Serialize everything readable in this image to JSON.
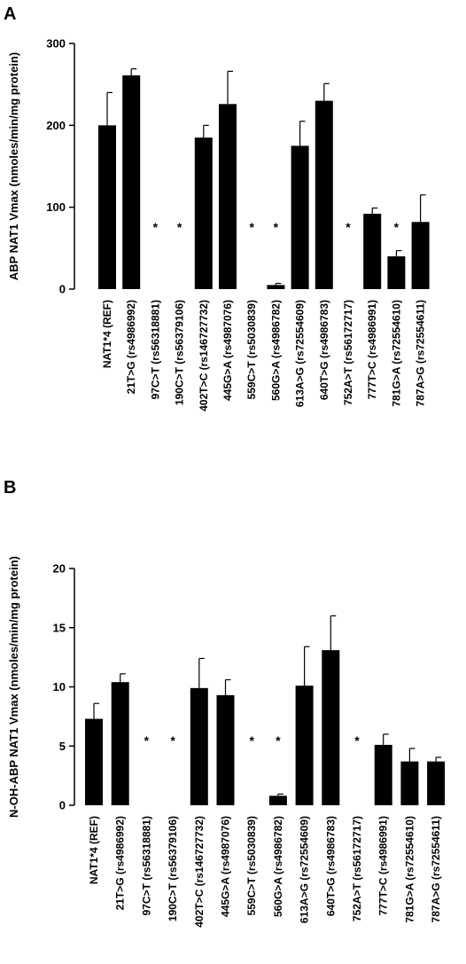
{
  "chart_data": [
    {
      "type": "bar",
      "panel_label": "A",
      "ylabel": "ABP NAT1 Vmax (nmoles/min/mg protein)",
      "ylim": [
        0,
        300
      ],
      "yticks": [
        0,
        100,
        200,
        300
      ],
      "categories": [
        "NAT1*4 (REF)",
        "21T>G (rs4986992)",
        "97C>T (rs56318881)",
        "190C>T (rs56379106)",
        "402T>C (rs146727732)",
        "445G>A (rs4987076)",
        "559C>T (rs5030839)",
        "560G>A (rs4986782)",
        "613A>G (rs72554609)",
        "640T>G (rs4986783)",
        "752A>T (rs56172717)",
        "777T>C (rs4986991)",
        "781G>A (rs72554610)",
        "787A>G (rs72554611)"
      ],
      "values": [
        200,
        261,
        0,
        0,
        185,
        226,
        0,
        5,
        175,
        230,
        0,
        92,
        40,
        82
      ],
      "errors": [
        40,
        8,
        0,
        0,
        15,
        40,
        0,
        2,
        30,
        21,
        0,
        7,
        7,
        33
      ],
      "significance": [
        "",
        "",
        "*",
        "*",
        "",
        "",
        "*",
        "*",
        "",
        "",
        "*",
        "",
        "*",
        ""
      ]
    },
    {
      "type": "bar",
      "panel_label": "B",
      "ylabel": "N-OH-ABP NAT1 Vmax (nmoles/min/mg protein)",
      "ylim": [
        0,
        20
      ],
      "yticks": [
        0,
        5,
        10,
        15,
        20
      ],
      "categories": [
        "NAT1*4 (REF)",
        "21T>G (rs4986992)",
        "97C>T (rs56318881)",
        "190C>T (rs56379106)",
        "402T>C (rs146727732)",
        "445G>A (rs4987076)",
        "559C>T (rs5030839)",
        "560G>A (rs4986782)",
        "613A>G (rs72554609)",
        "640T>G (rs4986783)",
        "752A>T (rs56172717)",
        "777T>C (rs4986991)",
        "781G>A (rs72554610)",
        "787A>G (rs72554611)"
      ],
      "values": [
        7.3,
        10.4,
        0,
        0,
        9.9,
        9.3,
        0,
        0.8,
        10.1,
        13.1,
        0,
        5.1,
        3.7,
        3.7
      ],
      "errors": [
        1.3,
        0.7,
        0,
        0,
        2.5,
        1.3,
        0,
        0.15,
        3.3,
        2.9,
        0,
        0.9,
        1.1,
        0.35
      ],
      "significance": [
        "",
        "",
        "*",
        "*",
        "",
        "",
        "*",
        "*",
        "",
        "",
        "*",
        "",
        "",
        ""
      ]
    }
  ]
}
